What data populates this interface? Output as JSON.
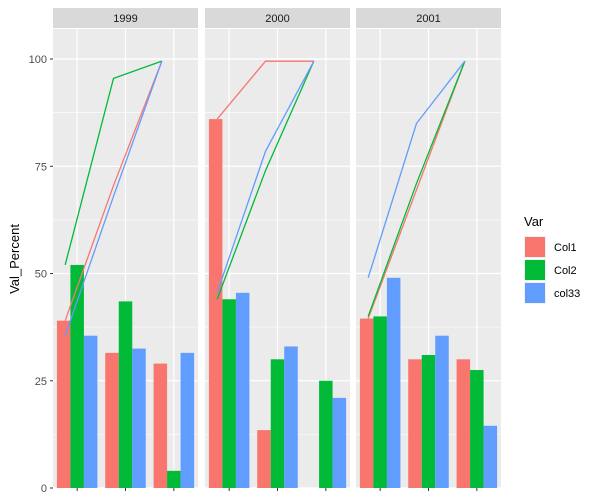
{
  "chart_data": {
    "type": "bar",
    "ylabel": "Val_Percent",
    "xlabel": "",
    "ylim": [
      0,
      107
    ],
    "yticks": [
      0,
      25,
      50,
      75,
      100
    ],
    "grid": true,
    "legend": {
      "title": "Var",
      "placement": "right",
      "entries": [
        "Col1",
        "Col2",
        "col33"
      ]
    },
    "colors": {
      "Col1": "#F8766D",
      "Col2": "#00BA38",
      "col33": "#619CFF",
      "panel": "#EBEBEB",
      "strip": "#D9D9D9",
      "grid": "#FFFFFF"
    },
    "groups_per_panel": 3,
    "panels": [
      {
        "label": "1999",
        "bars": {
          "Col1": [
            39,
            31.5,
            29
          ],
          "Col2": [
            52,
            43.5,
            4
          ],
          "col33": [
            35.5,
            32.5,
            31.5
          ]
        },
        "lines": {
          "Col1": [
            39,
            70.5,
            99.5
          ],
          "Col2": [
            52,
            95.5,
            99.5
          ],
          "col33": [
            35.5,
            68,
            99.5
          ]
        }
      },
      {
        "label": "2000",
        "bars": {
          "Col1": [
            86,
            13.5,
            0
          ],
          "Col2": [
            44,
            30,
            25
          ],
          "col33": [
            45.5,
            33,
            21
          ]
        },
        "lines": {
          "Col1": [
            86,
            99.5,
            99.5
          ],
          "Col2": [
            44,
            74,
            99.5
          ],
          "col33": [
            45.5,
            78.5,
            99.5
          ]
        }
      },
      {
        "label": "2001",
        "bars": {
          "Col1": [
            39.5,
            30,
            30
          ],
          "Col2": [
            40,
            31,
            27.5
          ],
          "col33": [
            49,
            35.5,
            14.5
          ]
        },
        "lines": {
          "Col1": [
            39.5,
            69.5,
            99.5
          ],
          "Col2": [
            40,
            71,
            99.5
          ],
          "col33": [
            49,
            85,
            99.5
          ]
        }
      }
    ]
  }
}
